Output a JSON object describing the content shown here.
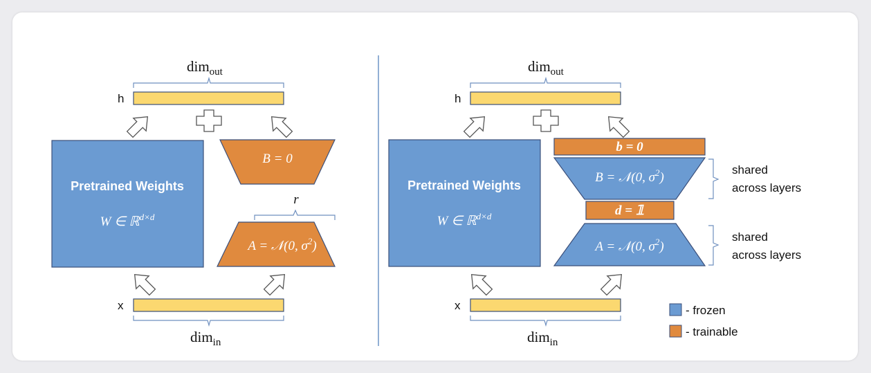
{
  "left": {
    "dim_out": {
      "base": "dim",
      "sub": "out"
    },
    "dim_in": {
      "base": "dim",
      "sub": "in"
    },
    "h_label": "h",
    "x_label": "x",
    "pretrained_title": "Pretrained Weights",
    "pretrained_formula": {
      "base": "W ∈ ℝ",
      "sup": "d×d"
    },
    "B_label": "B = 0",
    "A_label": {
      "base": "A = 𝒩(0, σ",
      "sup": "2",
      "end": ")"
    },
    "r_label": "r"
  },
  "right": {
    "dim_out": {
      "base": "dim",
      "sub": "out"
    },
    "dim_in": {
      "base": "dim",
      "sub": "in"
    },
    "h_label": "h",
    "x_label": "x",
    "pretrained_title": "Pretrained Weights",
    "pretrained_formula": {
      "base": "W ∈ ℝ",
      "sup": "d×d"
    },
    "b_label": "b = 0",
    "B_label": {
      "base": "B = 𝒩(0, σ",
      "sup": "2",
      "end": ")"
    },
    "d_label": "d = 𝟙",
    "A_label": {
      "base": "A = 𝒩(0, σ",
      "sup": "2",
      "end": ")"
    },
    "shared_top": [
      "shared",
      "across layers"
    ],
    "shared_bottom": [
      "shared",
      "across layers"
    ]
  },
  "legend": {
    "frozen": "- frozen",
    "trainable": "- trainable"
  },
  "colors": {
    "frozen": "#6b9bd2",
    "trainable": "#e08a3e",
    "bar": "#fbd870",
    "outline": "#3b4f7a"
  }
}
